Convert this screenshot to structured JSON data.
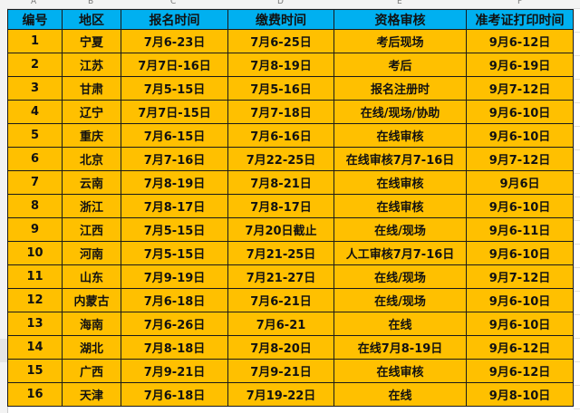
{
  "column_letters": [
    "A",
    "B",
    "C",
    "D",
    "E",
    "F"
  ],
  "headers": [
    "编号",
    "地区",
    "报名时间",
    "缴费时间",
    "资格审核",
    "准考证打印时间"
  ],
  "rows": [
    [
      "1",
      "宁夏",
      "7月6-23日",
      "7月6-25日",
      "考后现场",
      "9月6-12日"
    ],
    [
      "2",
      "江苏",
      "7月7日-16日",
      "7月8-19日",
      "考后",
      "9月6-19日"
    ],
    [
      "3",
      "甘肃",
      "7月5-15日",
      "7月5-16日",
      "报名注册时",
      "9月7-12日"
    ],
    [
      "4",
      "辽宁",
      "7月7日-15日",
      "7月7-18日",
      "在线/现场/协助",
      "9月6-10日"
    ],
    [
      "5",
      "重庆",
      "7月6-15日",
      "7月6-16日",
      "在线审核",
      "9月6-10日"
    ],
    [
      "6",
      "北京",
      "7月7-16日",
      "7月22-25日",
      "在线审核7月7-16日",
      "9月7-12日"
    ],
    [
      "7",
      "云南",
      "7月8-19日",
      "7月8-21日",
      "在线审核",
      "9月6日"
    ],
    [
      "8",
      "浙江",
      "7月8-17日",
      "7月8-17日",
      "在线审核",
      "9月6-10日"
    ],
    [
      "9",
      "江西",
      "7月5-15日",
      "7月20日截止",
      "在线/现场",
      "9月6-11日"
    ],
    [
      "10",
      "河南",
      "7月5-15日",
      "7月21-25日",
      "人工审核7月7-16日",
      "9月6-10日"
    ],
    [
      "11",
      "山东",
      "7月9-19日",
      "7月21-27日",
      "在线/现场",
      "9月7-12日"
    ],
    [
      "12",
      "内蒙古",
      "7月6-18日",
      "7月6-21日",
      "在线/现场",
      "9月6-10日"
    ],
    [
      "13",
      "海南",
      "7月6-26日",
      "7月6-21",
      "在线",
      "9月6-10日"
    ],
    [
      "14",
      "湖北",
      "7月8-18日",
      "7月8-20日",
      "在线7月8-19日",
      "9月6-12日"
    ],
    [
      "15",
      "广西",
      "7月9-21日",
      "7月9-21日",
      "在线审核",
      "9月6-12日"
    ],
    [
      "16",
      "天津",
      "7月6-18日",
      "7月19-22日",
      "在线",
      "9月8-10日"
    ]
  ],
  "colors": {
    "header_bg": "#00b0f0",
    "cell_bg": "#ffc000"
  }
}
